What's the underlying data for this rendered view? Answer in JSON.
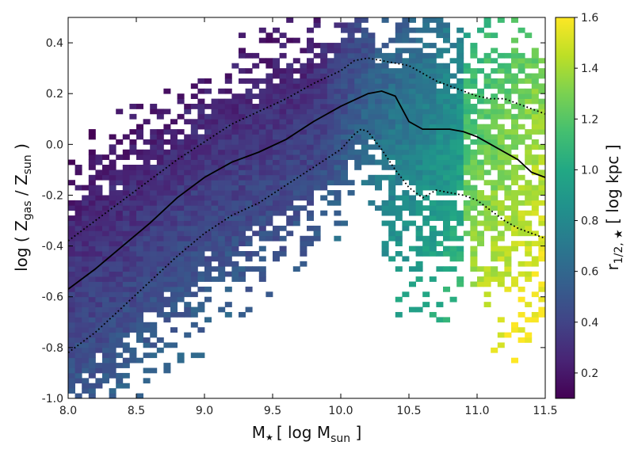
{
  "chart_data": {
    "type": "heatmap",
    "title": "",
    "xlabel": {
      "main": "M",
      "star": "★",
      "bracket_open": "[ log M",
      "sub": "sun",
      "bracket_close": " ]"
    },
    "ylabel": {
      "open": "log ( Z",
      "sub1": "gas",
      "mid": " / Z",
      "sub2": "sun",
      "close": " )"
    },
    "colorbar_label": {
      "main": "r",
      "sub": "1/2, ★",
      "rest": " [ log kpc ]"
    },
    "xlim": [
      8.0,
      11.5
    ],
    "ylim": [
      -1.0,
      0.5
    ],
    "clim": [
      0.1,
      1.6
    ],
    "x_ticks": [
      "8.0",
      "8.5",
      "9.0",
      "9.5",
      "10.0",
      "10.5",
      "11.0",
      "11.5"
    ],
    "y_ticks": [
      "-1.0",
      "-0.8",
      "-0.6",
      "-0.4",
      "-0.2",
      "0.0",
      "0.2",
      "0.4"
    ],
    "colorbar_ticks": [
      "0.2",
      "0.4",
      "0.6",
      "0.8",
      "1.0",
      "1.2",
      "1.4",
      "1.6"
    ],
    "colormap": "viridis",
    "grid": false,
    "bins": {
      "x_bin_width": 0.05,
      "y_bin_width": 0.02
    },
    "series": [
      {
        "style": "solid",
        "x": [
          8.0,
          8.2,
          8.4,
          8.6,
          8.8,
          9.0,
          9.2,
          9.4,
          9.6,
          9.8,
          10.0,
          10.2,
          10.3,
          10.4,
          10.5,
          10.6,
          10.7,
          10.8,
          10.9,
          11.0,
          11.1,
          11.2,
          11.3,
          11.4,
          11.5
        ],
        "y": [
          -0.57,
          -0.49,
          -0.4,
          -0.31,
          -0.21,
          -0.13,
          -0.07,
          -0.03,
          0.02,
          0.09,
          0.15,
          0.2,
          0.21,
          0.19,
          0.09,
          0.06,
          0.06,
          0.06,
          0.05,
          0.03,
          0.0,
          -0.03,
          -0.06,
          -0.11,
          -0.13
        ]
      },
      {
        "style": "dotted",
        "x": [
          8.0,
          8.2,
          8.4,
          8.6,
          8.8,
          9.0,
          9.2,
          9.4,
          9.6,
          9.8,
          10.0,
          10.1,
          10.2,
          10.3,
          10.4,
          10.5,
          10.6,
          10.7,
          10.8,
          10.9,
          11.0,
          11.1,
          11.2,
          11.3,
          11.4,
          11.5
        ],
        "y": [
          -0.38,
          -0.3,
          -0.22,
          -0.14,
          -0.06,
          0.01,
          0.08,
          0.13,
          0.18,
          0.24,
          0.29,
          0.33,
          0.34,
          0.33,
          0.32,
          0.31,
          0.28,
          0.25,
          0.23,
          0.21,
          0.19,
          0.18,
          0.18,
          0.16,
          0.14,
          0.12
        ]
      },
      {
        "style": "dotted",
        "x": [
          8.0,
          8.2,
          8.4,
          8.6,
          8.8,
          9.0,
          9.2,
          9.4,
          9.6,
          9.8,
          10.0,
          10.1,
          10.15,
          10.2,
          10.3,
          10.4,
          10.5,
          10.6,
          10.7,
          10.8,
          10.9,
          11.0,
          11.1,
          11.2,
          11.3,
          11.4,
          11.5
        ],
        "y": [
          -0.82,
          -0.74,
          -0.64,
          -0.54,
          -0.44,
          -0.35,
          -0.28,
          -0.23,
          -0.16,
          -0.09,
          -0.02,
          0.04,
          0.06,
          0.05,
          -0.02,
          -0.1,
          -0.17,
          -0.21,
          -0.18,
          -0.19,
          -0.2,
          -0.22,
          -0.26,
          -0.3,
          -0.33,
          -0.35,
          -0.37
        ]
      }
    ]
  }
}
